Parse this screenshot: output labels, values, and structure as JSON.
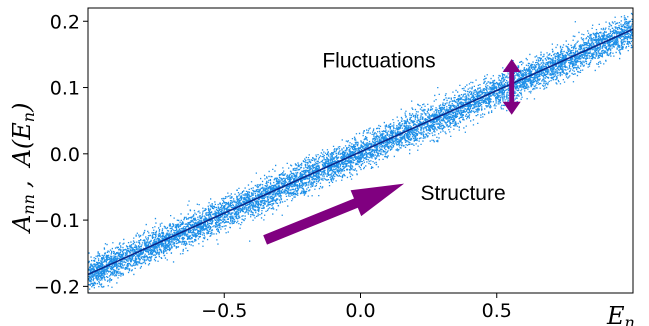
{
  "chart_data": {
    "type": "scatter",
    "xlabel": "E",
    "xlabel_subscript": "n",
    "ylabel": "A",
    "ylabel_subscript": "nn",
    "ylabel_separator": ",",
    "ylabel_second": "A(E",
    "ylabel_second_subscript": "n",
    "ylabel_second_close": ")",
    "xlim": [
      -1.0,
      1.0
    ],
    "ylim": [
      -0.21,
      0.22
    ],
    "xticks": [
      -0.5,
      0.0,
      0.5
    ],
    "xtick_labels": [
      "−0.5",
      "0.0",
      "0.5"
    ],
    "yticks": [
      -0.2,
      -0.1,
      0.0,
      0.1,
      0.2
    ],
    "ytick_labels": [
      "−0.2",
      "−0.1",
      "0.0",
      "0.1",
      "0.2"
    ],
    "grid": false,
    "series": [
      {
        "kind": "scatter",
        "color": "#1e90e8",
        "band_center_line": {
          "x": [
            -1.0,
            1.0
          ],
          "y": [
            -0.182,
            0.188
          ]
        },
        "band_halfwidth": 0.022
      },
      {
        "kind": "line",
        "color": "#0b2a8c",
        "x": [
          -1.0,
          1.0
        ],
        "y": [
          -0.182,
          0.188
        ]
      }
    ],
    "annotations": [
      {
        "text": "Fluctuations",
        "x": -0.14,
        "y": 0.13
      },
      {
        "text": "Structure",
        "x": 0.22,
        "y": -0.07
      }
    ],
    "arrows": [
      {
        "name": "structure-arrow",
        "color": "#800080",
        "from": [
          -0.35,
          -0.13
        ],
        "to": [
          0.16,
          -0.045
        ]
      },
      {
        "name": "fluctuations-arrow",
        "color": "#800080",
        "x": 0.555,
        "y_from": 0.143,
        "y_to": 0.059,
        "double": true
      }
    ]
  }
}
